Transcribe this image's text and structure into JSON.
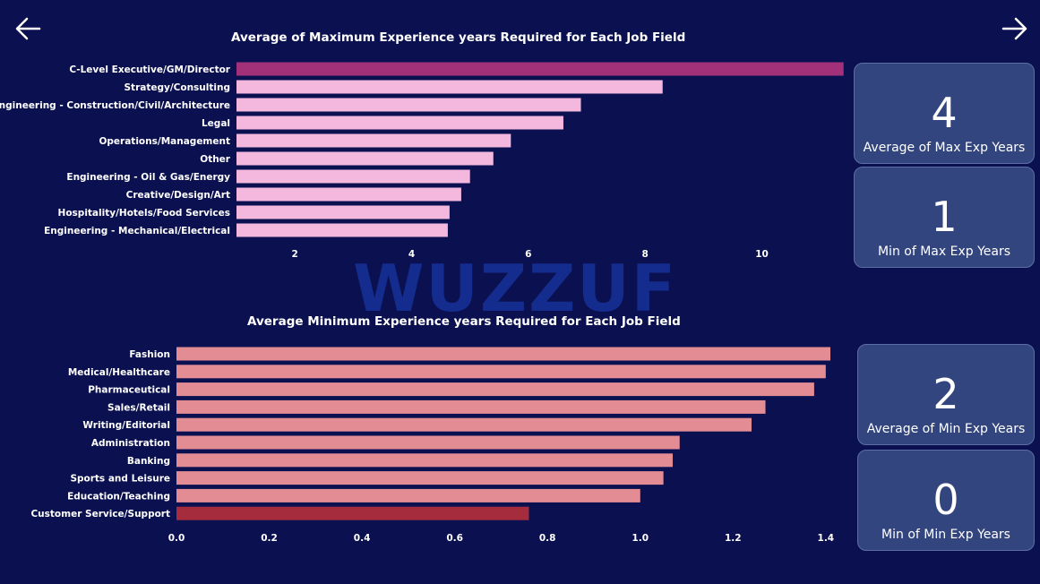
{
  "watermark": "WUZZUF",
  "cards": {
    "avg_max": {
      "value": "4",
      "label": "Average of Max Exp Years"
    },
    "min_max": {
      "value": "1",
      "label": "Min of Max Exp Years"
    },
    "avg_min": {
      "value": "2",
      "label": "Average of Min Exp Years"
    },
    "min_min": {
      "value": "0",
      "label": "Min of Min Exp Years"
    }
  },
  "colors": {
    "background": "#0b1150",
    "card": "#33457e",
    "max_bar": "#f4b8de",
    "max_bar_highlight": "#a3317a",
    "min_bar": "#e38c94",
    "min_bar_highlight": "#a42c3c"
  },
  "chart_data": [
    {
      "type": "bar",
      "orientation": "horizontal",
      "title": "Average of Maximum Experience years Required for Each Job Field",
      "categories": [
        "C-Level Executive/GM/Director",
        "Strategy/Consulting",
        "Engineering - Construction/Civil/Architecture",
        "Legal",
        "Operations/Management",
        "Other",
        "Engineering - Oil & Gas/Energy",
        "Creative/Design/Art",
        "Hospitality/Hotels/Food Services",
        "Engineering - Mechanical/Electrical"
      ],
      "values": [
        11.4,
        8.3,
        6.9,
        6.6,
        5.7,
        5.4,
        5.0,
        4.85,
        4.65,
        4.62
      ],
      "highlight_index": 0,
      "xlim": [
        1,
        11.45
      ],
      "xticks": [
        2,
        4,
        6,
        8,
        10
      ],
      "xtick_labels": [
        "2",
        "4",
        "6",
        "8",
        "10"
      ],
      "grid": false
    },
    {
      "type": "bar",
      "orientation": "horizontal",
      "title": "Average Minimum Experience years Required for Each Job Field",
      "categories": [
        "Fashion",
        "Medical/Healthcare",
        "Pharmaceutical",
        "Sales/Retail",
        "Writing/Editorial",
        "Administration",
        "Banking",
        "Sports and Leisure",
        "Education/Teaching",
        "Customer Service/Support"
      ],
      "values": [
        1.41,
        1.4,
        1.375,
        1.27,
        1.24,
        1.085,
        1.07,
        1.05,
        1.0,
        0.76
      ],
      "highlight_index": 9,
      "xlim": [
        0,
        1.41
      ],
      "xticks": [
        0,
        0.2,
        0.4,
        0.6,
        0.8,
        1.0,
        1.2,
        1.4
      ],
      "xtick_labels": [
        "0.0",
        "0.2",
        "0.4",
        "0.6",
        "0.8",
        "1.0",
        "1.2",
        "1.4"
      ],
      "grid": false
    }
  ]
}
